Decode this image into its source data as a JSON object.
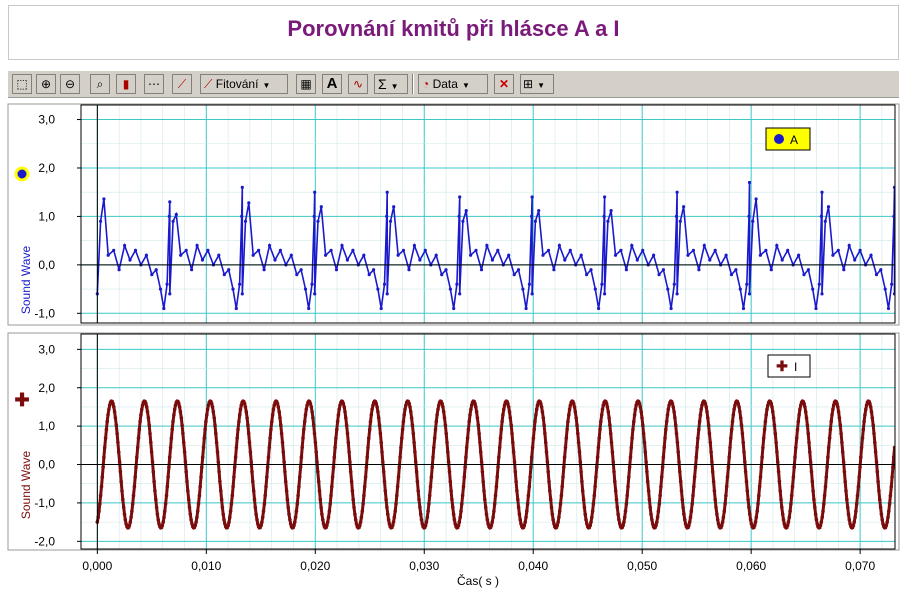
{
  "title": "Porovnání kmitů při hlásce A a I",
  "toolbar": {
    "fit_label": "Fitování",
    "data_label": "Data",
    "sigma": "Σ",
    "text_tool": "A"
  },
  "colors": {
    "series_a": "#1a1acc",
    "series_i": "#7a0c0c",
    "grid": "#3cc8c8",
    "title": "#7a1a7a"
  },
  "chart_data": [
    {
      "type": "line",
      "xlabel": "Čas( s )",
      "ylabel": "Sound Wave",
      "xlim": [
        -0.0015,
        0.0732
      ],
      "ylim": [
        -1.2,
        3.3
      ],
      "x_ticks": [
        "0,000",
        "0,010",
        "0,020",
        "0,030",
        "0,040",
        "0,050",
        "0,060",
        "0,070"
      ],
      "y_ticks": [
        "3,0",
        "2,0",
        "1,0",
        "0,0",
        "-1,0"
      ],
      "grid": true,
      "legend": "top-right",
      "series": [
        {
          "name": "A",
          "marker": "circle",
          "period_s": 0.00665,
          "one_period_shape": {
            "x": [
              0.0,
              0.0003,
              0.0006,
              0.001,
              0.0015,
              0.002,
              0.0025,
              0.003,
              0.0035,
              0.004,
              0.0045,
              0.005,
              0.0054,
              0.0058,
              0.0061,
              0.0064,
              0.0066,
              0.00665
            ],
            "y": [
              -0.6,
              0.9,
              1.2,
              0.2,
              0.3,
              -0.1,
              0.4,
              0.1,
              0.3,
              0.0,
              0.2,
              -0.2,
              -0.1,
              -0.5,
              -0.9,
              -0.4,
              1.0,
              1.5
            ]
          },
          "peaks_y": [
            1.3,
            1.6,
            1.5,
            1.5,
            1.4,
            1.4,
            1.4,
            1.5,
            1.7,
            1.5,
            1.6,
            1.7,
            1.7
          ]
        }
      ]
    },
    {
      "type": "line",
      "xlabel": "Čas( s )",
      "ylabel": "Sound Wave",
      "xlim": [
        -0.0015,
        0.0732
      ],
      "ylim": [
        -2.2,
        3.4
      ],
      "x_ticks": [
        "0,000",
        "0,010",
        "0,020",
        "0,030",
        "0,040",
        "0,050",
        "0,060",
        "0,070"
      ],
      "y_ticks": [
        "3,0",
        "2,0",
        "1,0",
        "0,0",
        "-1,0",
        "-2,0"
      ],
      "grid": true,
      "legend": "top-right",
      "series": [
        {
          "name": "I",
          "marker": "plus",
          "waveform": "sine",
          "amplitude": 1.65,
          "period_s": 0.00302,
          "x_start": 0.0,
          "y_start": -1.5
        }
      ]
    }
  ]
}
